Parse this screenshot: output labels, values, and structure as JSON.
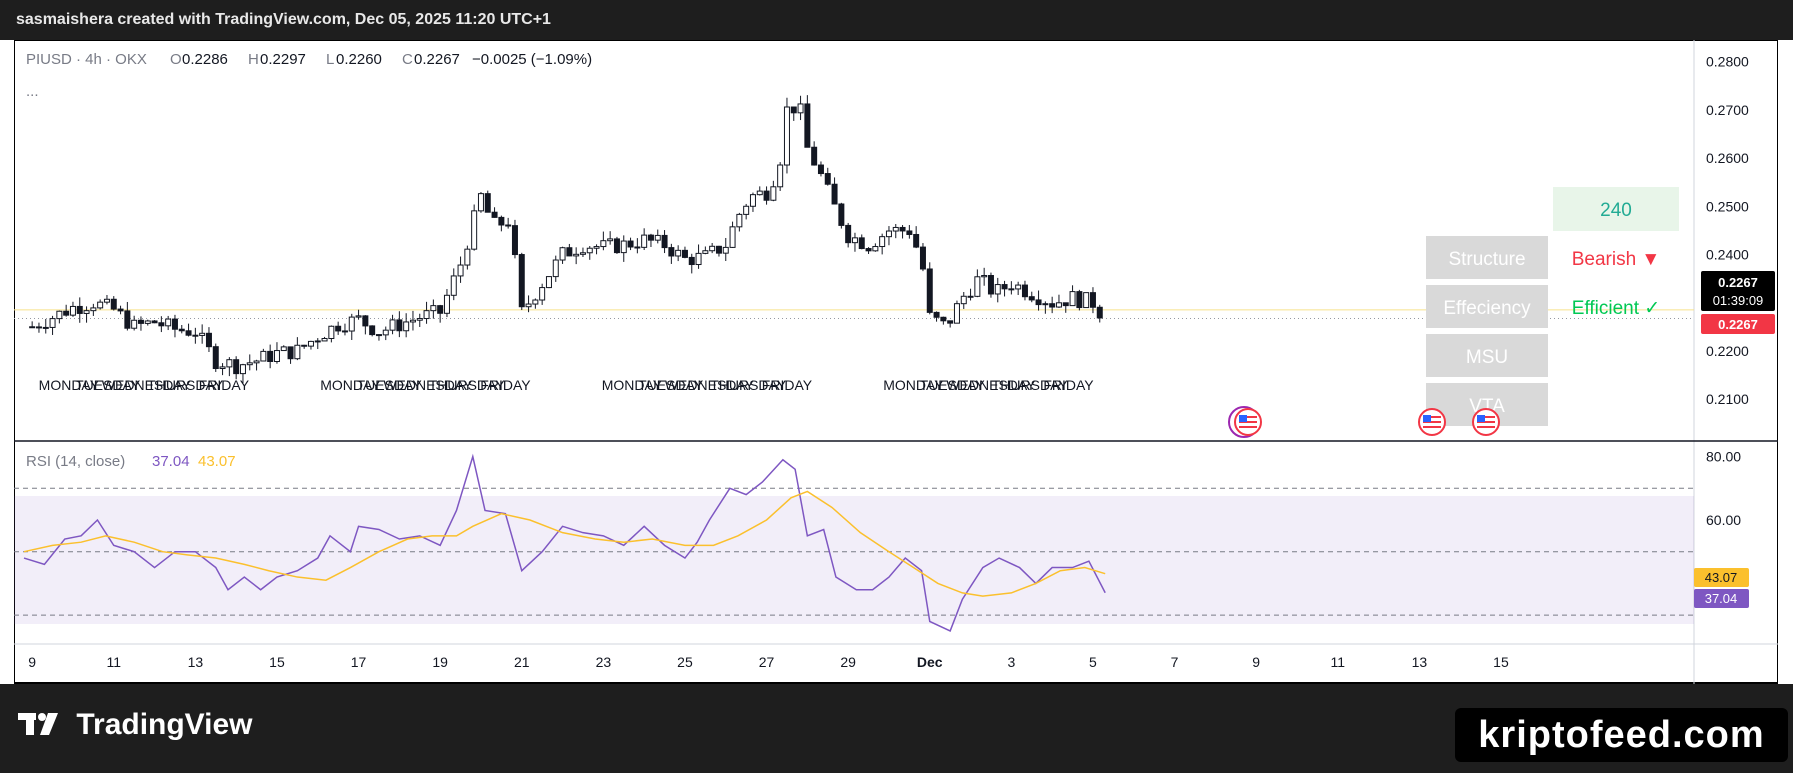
{
  "header": {
    "caption": "sasmaishera created with TradingView.com, Dec 05, 2025 11:20 UTC+1"
  },
  "legend": {
    "symbol": "PIUSD · 4h · OKX",
    "o_label": "O",
    "o_value": "0.2286",
    "h_label": "H",
    "h_value": "0.2297",
    "l_label": "L",
    "l_value": "0.2260",
    "c_label": "C",
    "c_value": "0.2267",
    "change": "−0.0025 (−1.09%)",
    "more": "..."
  },
  "price_tag": {
    "price": "0.2267",
    "countdown": "01:39:09",
    "price2": "0.2267"
  },
  "rsi_legend": {
    "title": "RSI (14, close)",
    "value1": "37.04",
    "value2": "43.07"
  },
  "rsi_tags": {
    "v1": "43.07",
    "v2": "37.04"
  },
  "table": {
    "timeframe": "240",
    "rows": [
      {
        "label": "Structure",
        "value": "Bearish ▼",
        "color": "#f23645"
      },
      {
        "label": "Effeciency",
        "value": "Efficient ✓",
        "color": "#22ab94"
      },
      {
        "label": "MSU",
        "value": ""
      },
      {
        "label": "VTA",
        "value": ""
      }
    ]
  },
  "day_labels": [
    "MONDAY",
    "TUESDAY",
    "WEDNESDAY",
    "THURSDAY",
    "FRIDAY"
  ],
  "footer": {
    "brand": "TradingView",
    "site": "kriptofeed.com"
  },
  "chart_data": [
    {
      "type": "candlestick",
      "title": "PIUSD · 4h · OKX",
      "y_ticks": [
        "0.2800",
        "0.2700",
        "0.2600",
        "0.2500",
        "0.2400",
        "0.2300",
        "0.2200",
        "0.2100"
      ],
      "ylim": [
        0.2015,
        0.2845
      ],
      "x_ticks": [
        "9",
        "11",
        "13",
        "15",
        "17",
        "19",
        "21",
        "23",
        "25",
        "27",
        "29",
        "Dec",
        "3",
        "5",
        "7",
        "9",
        "11",
        "13",
        "15"
      ],
      "x_range_days": [
        8.8,
        15.0
      ],
      "anchors": [
        [
          9.0,
          0.225
        ],
        [
          10.0,
          0.229
        ],
        [
          10.5,
          0.23
        ],
        [
          11.0,
          0.2285
        ],
        [
          11.5,
          0.225
        ],
        [
          12.0,
          0.226
        ],
        [
          12.5,
          0.2245
        ],
        [
          13.0,
          0.224
        ],
        [
          13.5,
          0.218
        ],
        [
          14.0,
          0.217
        ],
        [
          14.5,
          0.218
        ],
        [
          15.0,
          0.2195
        ],
        [
          15.5,
          0.22
        ],
        [
          16.0,
          0.223
        ],
        [
          16.5,
          0.2255
        ],
        [
          17.0,
          0.2265
        ],
        [
          17.5,
          0.224
        ],
        [
          18.0,
          0.2255
        ],
        [
          18.5,
          0.227
        ],
        [
          19.0,
          0.228
        ],
        [
          19.5,
          0.238
        ],
        [
          20.0,
          0.252
        ],
        [
          20.3,
          0.246
        ],
        [
          20.7,
          0.247
        ],
        [
          21.0,
          0.228
        ],
        [
          21.5,
          0.234
        ],
        [
          22.0,
          0.24
        ],
        [
          22.5,
          0.242
        ],
        [
          23.0,
          0.2415
        ],
        [
          23.5,
          0.242
        ],
        [
          24.0,
          0.243
        ],
        [
          24.5,
          0.242
        ],
        [
          25.0,
          0.239
        ],
        [
          25.5,
          0.2395
        ],
        [
          26.0,
          0.242
        ],
        [
          26.3,
          0.248
        ],
        [
          26.6,
          0.252
        ],
        [
          27.0,
          0.253
        ],
        [
          27.3,
          0.258
        ],
        [
          27.5,
          0.27
        ],
        [
          27.8,
          0.271
        ],
        [
          28.0,
          0.262
        ],
        [
          28.3,
          0.257
        ],
        [
          28.6,
          0.251
        ],
        [
          29.0,
          0.244
        ],
        [
          29.5,
          0.242
        ],
        [
          30.0,
          0.245
        ],
        [
          30.5,
          0.245
        ],
        [
          30.8,
          0.239
        ],
        [
          31.0,
          0.227
        ],
        [
          31.4,
          0.225
        ],
        [
          31.8,
          0.231
        ],
        [
          32.2,
          0.235
        ],
        [
          32.6,
          0.232
        ],
        [
          33.0,
          0.234
        ],
        [
          33.5,
          0.232
        ],
        [
          34.0,
          0.23
        ],
        [
          34.5,
          0.231
        ],
        [
          35.0,
          0.23
        ],
        [
          35.3,
          0.2267
        ]
      ]
    },
    {
      "type": "line",
      "title": "RSI (14, close)",
      "y_ticks": [
        "80.00",
        "60.00"
      ],
      "ylim": [
        21.2,
        84.6
      ],
      "bands": [
        70,
        50,
        30
      ],
      "series": [
        {
          "name": "RSI",
          "color": "#7e57c2",
          "values": [
            [
              8.8,
              48
            ],
            [
              9.3,
              46
            ],
            [
              9.8,
              54
            ],
            [
              10.2,
              55
            ],
            [
              10.6,
              60
            ],
            [
              11.0,
              52
            ],
            [
              11.5,
              50
            ],
            [
              12.0,
              45
            ],
            [
              12.5,
              50
            ],
            [
              13.0,
              50
            ],
            [
              13.5,
              45
            ],
            [
              13.8,
              38
            ],
            [
              14.2,
              42
            ],
            [
              14.6,
              38
            ],
            [
              15.0,
              42
            ],
            [
              15.5,
              44
            ],
            [
              16.0,
              48
            ],
            [
              16.3,
              55
            ],
            [
              16.8,
              50
            ],
            [
              17.0,
              58
            ],
            [
              17.5,
              57
            ],
            [
              18.0,
              54
            ],
            [
              18.5,
              55
            ],
            [
              19.0,
              52
            ],
            [
              19.4,
              63
            ],
            [
              19.8,
              80
            ],
            [
              20.1,
              63
            ],
            [
              20.6,
              62
            ],
            [
              21.0,
              44
            ],
            [
              21.5,
              50
            ],
            [
              22.0,
              58
            ],
            [
              22.5,
              56
            ],
            [
              23.0,
              55
            ],
            [
              23.5,
              52
            ],
            [
              24.0,
              58
            ],
            [
              24.5,
              52
            ],
            [
              25.0,
              48
            ],
            [
              25.3,
              53
            ],
            [
              25.6,
              60
            ],
            [
              26.1,
              70
            ],
            [
              26.5,
              68
            ],
            [
              26.9,
              72
            ],
            [
              27.4,
              79
            ],
            [
              27.7,
              76
            ],
            [
              28.0,
              55
            ],
            [
              28.4,
              57
            ],
            [
              28.7,
              42
            ],
            [
              29.2,
              38
            ],
            [
              29.6,
              38
            ],
            [
              30.0,
              42
            ],
            [
              30.4,
              48
            ],
            [
              30.8,
              44
            ],
            [
              31.0,
              28
            ],
            [
              31.5,
              25
            ],
            [
              31.8,
              35
            ],
            [
              32.3,
              45
            ],
            [
              32.7,
              48
            ],
            [
              33.2,
              45
            ],
            [
              33.6,
              40
            ],
            [
              34.0,
              45
            ],
            [
              34.5,
              45
            ],
            [
              34.9,
              47
            ],
            [
              35.3,
              37.04
            ]
          ]
        },
        {
          "name": "MA",
          "color": "#fbc02d",
          "values": [
            [
              8.8,
              50
            ],
            [
              9.5,
              52
            ],
            [
              10.2,
              53
            ],
            [
              10.8,
              55
            ],
            [
              11.5,
              53
            ],
            [
              12.2,
              50
            ],
            [
              12.8,
              49
            ],
            [
              13.5,
              48
            ],
            [
              14.2,
              46
            ],
            [
              14.8,
              44
            ],
            [
              15.5,
              42
            ],
            [
              16.2,
              41
            ],
            [
              16.8,
              45
            ],
            [
              17.5,
              50
            ],
            [
              18.2,
              54
            ],
            [
              18.8,
              55
            ],
            [
              19.4,
              55
            ],
            [
              19.8,
              58
            ],
            [
              20.5,
              62
            ],
            [
              21.2,
              60
            ],
            [
              22.0,
              56
            ],
            [
              22.8,
              54
            ],
            [
              23.5,
              53
            ],
            [
              24.2,
              54
            ],
            [
              25.0,
              52
            ],
            [
              25.7,
              52
            ],
            [
              26.3,
              55
            ],
            [
              27.0,
              60
            ],
            [
              27.6,
              67
            ],
            [
              28.0,
              69
            ],
            [
              28.6,
              64
            ],
            [
              29.3,
              56
            ],
            [
              30.0,
              50
            ],
            [
              30.6,
              45
            ],
            [
              31.2,
              40
            ],
            [
              31.8,
              37
            ],
            [
              32.3,
              36
            ],
            [
              33.0,
              37
            ],
            [
              33.6,
              40
            ],
            [
              34.2,
              44
            ],
            [
              34.8,
              45
            ],
            [
              35.3,
              43.07
            ]
          ]
        }
      ]
    }
  ]
}
